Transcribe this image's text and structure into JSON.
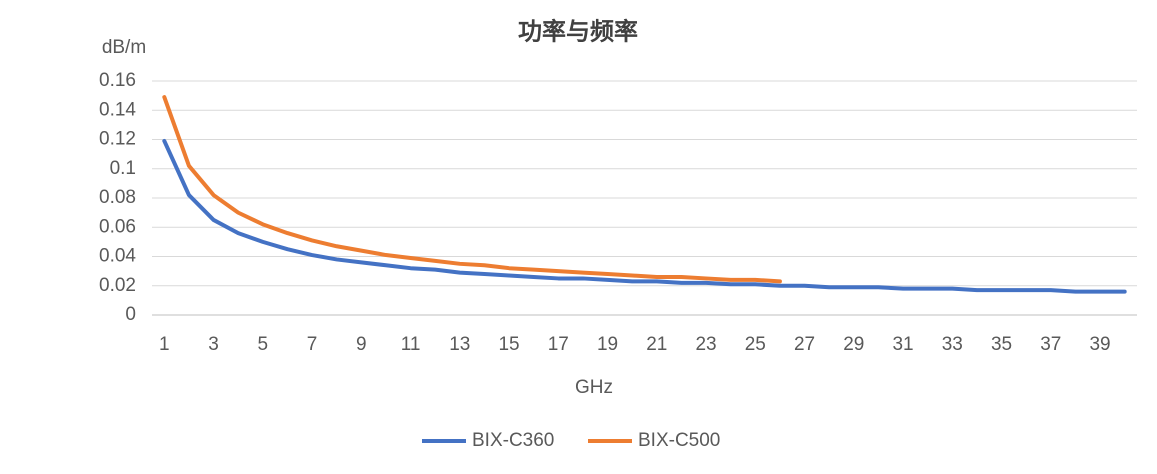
{
  "chart_data": {
    "type": "line",
    "title": "功率与频率",
    "y_label": "dB/m",
    "x_label": "GHz",
    "x": [
      1,
      2,
      3,
      4,
      5,
      6,
      7,
      8,
      9,
      10,
      11,
      12,
      13,
      14,
      15,
      16,
      17,
      18,
      19,
      20,
      21,
      22,
      23,
      24,
      25,
      26,
      27,
      28,
      29,
      30,
      31,
      32,
      33,
      34,
      35,
      36,
      37,
      38,
      39,
      40
    ],
    "series": [
      {
        "name": "BIX-C360",
        "color": "#4472c4",
        "values": [
          0.119,
          0.082,
          0.065,
          0.056,
          0.05,
          0.045,
          0.041,
          0.038,
          0.036,
          0.034,
          0.032,
          0.031,
          0.029,
          0.028,
          0.027,
          0.026,
          0.025,
          0.025,
          0.024,
          0.023,
          0.023,
          0.022,
          0.022,
          0.021,
          0.021,
          0.02,
          0.02,
          0.019,
          0.019,
          0.019,
          0.018,
          0.018,
          0.018,
          0.017,
          0.017,
          0.017,
          0.017,
          0.016,
          0.016,
          0.016
        ]
      },
      {
        "name": "BIX-C500",
        "color": "#ed7d31",
        "values": [
          0.149,
          0.102,
          0.082,
          0.07,
          0.062,
          0.056,
          0.051,
          0.047,
          0.044,
          0.041,
          0.039,
          0.037,
          0.035,
          0.034,
          0.032,
          0.031,
          0.03,
          0.029,
          0.028,
          0.027,
          0.026,
          0.026,
          0.025,
          0.024,
          0.024,
          0.023,
          null,
          null,
          null,
          null,
          null,
          null,
          null,
          null,
          null,
          null,
          null,
          null,
          null,
          null
        ]
      }
    ],
    "xlim": [
      0.5,
      40.5
    ],
    "xticks": [
      1,
      3,
      5,
      7,
      9,
      11,
      13,
      15,
      17,
      19,
      21,
      23,
      25,
      27,
      29,
      31,
      33,
      35,
      37,
      39
    ],
    "ylim": [
      0,
      0.16
    ],
    "yticks": [
      0,
      0.02,
      0.04,
      0.06,
      0.08,
      0.1,
      0.12,
      0.14,
      0.16
    ],
    "grid": true,
    "legend": "bottom"
  }
}
